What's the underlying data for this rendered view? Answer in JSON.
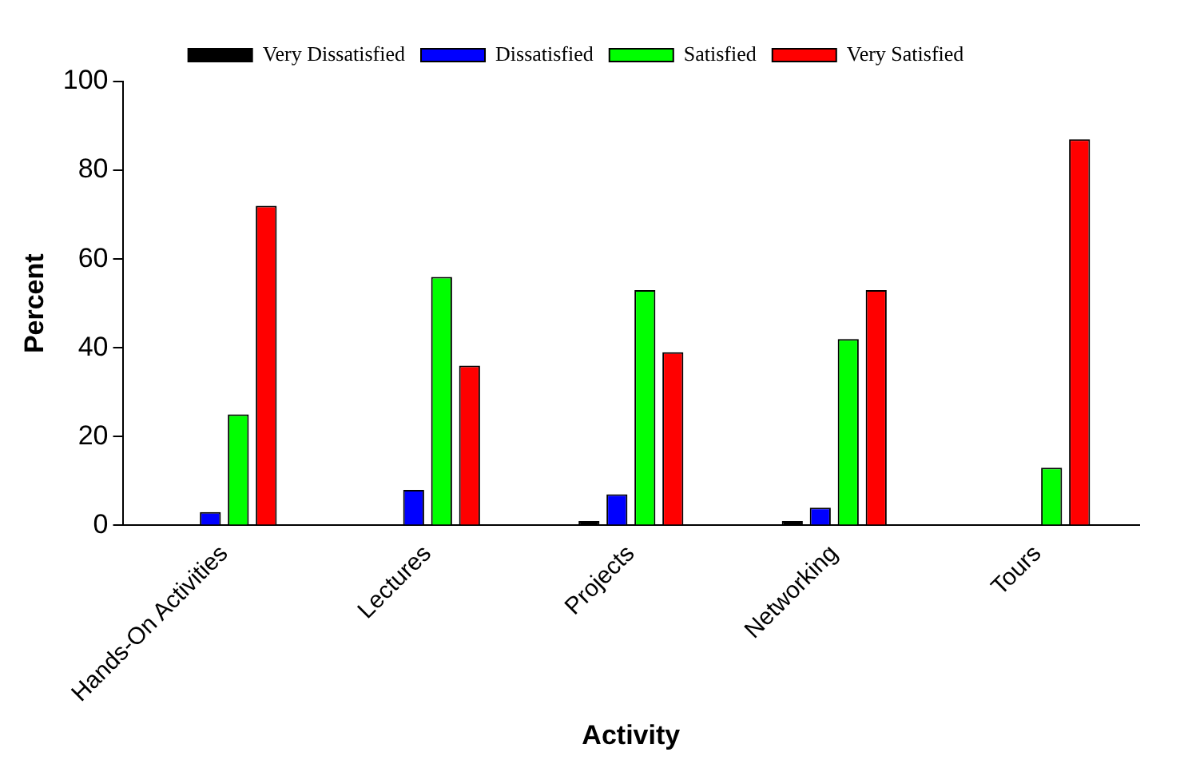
{
  "chart_data": {
    "type": "bar",
    "xlabel": "Activity",
    "ylabel": "Percent",
    "categories": [
      "Hands-On Activities",
      "Lectures",
      "Projects",
      "Networking",
      "Tours"
    ],
    "series": [
      {
        "name": "Very Dissatisfied",
        "color": "#000000",
        "values": [
          0,
          0,
          1,
          1,
          0
        ]
      },
      {
        "name": "Dissatisfied",
        "color": "#0000ff",
        "values": [
          3,
          8,
          7,
          4,
          0
        ]
      },
      {
        "name": "Satisfied",
        "color": "#00ff00",
        "values": [
          25,
          56,
          53,
          42,
          13
        ]
      },
      {
        "name": "Very Satisfied",
        "color": "#ff0000",
        "values": [
          72,
          36,
          39,
          53,
          87
        ]
      }
    ],
    "ylim": [
      0,
      100
    ],
    "yticks": [
      0,
      20,
      40,
      60,
      80,
      100
    ],
    "grid": false,
    "legend": "top"
  }
}
